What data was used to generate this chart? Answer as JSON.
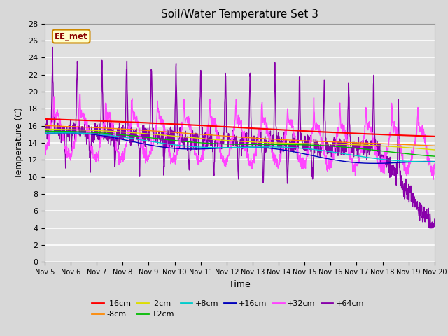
{
  "title": "Soil/Water Temperature Set 3",
  "xlabel": "Time",
  "ylabel": "Temperature (C)",
  "ylim": [
    0,
    28
  ],
  "yticks": [
    0,
    2,
    4,
    6,
    8,
    10,
    12,
    14,
    16,
    18,
    20,
    22,
    24,
    26,
    28
  ],
  "x_tick_labels": [
    "Nov 5",
    "Nov 6",
    "Nov 7",
    "Nov 8",
    "Nov 9",
    "Nov 10",
    "Nov 11",
    "Nov 12",
    "Nov 13",
    "Nov 14",
    "Nov 15",
    "Nov 16",
    "Nov 17",
    "Nov 18",
    "Nov 19",
    "Nov 20"
  ],
  "series": {
    "-16cm": {
      "color": "#ff0000",
      "lw": 1.5
    },
    "-8cm": {
      "color": "#ff8800",
      "lw": 1.0
    },
    "-2cm": {
      "color": "#dddd00",
      "lw": 1.0
    },
    "+2cm": {
      "color": "#00bb00",
      "lw": 1.0
    },
    "+8cm": {
      "color": "#00cccc",
      "lw": 1.0
    },
    "+16cm": {
      "color": "#0000bb",
      "lw": 1.0
    },
    "+32cm": {
      "color": "#ff44ff",
      "lw": 1.0
    },
    "+64cm": {
      "color": "#8800aa",
      "lw": 1.0
    }
  },
  "watermark_text": "EE_met",
  "watermark_bg": "#ffffcc",
  "watermark_border": "#cc8800",
  "watermark_color": "#880000",
  "fig_facecolor": "#d8d8d8",
  "ax_facecolor": "#e0e0e0",
  "grid_color": "#ffffff"
}
